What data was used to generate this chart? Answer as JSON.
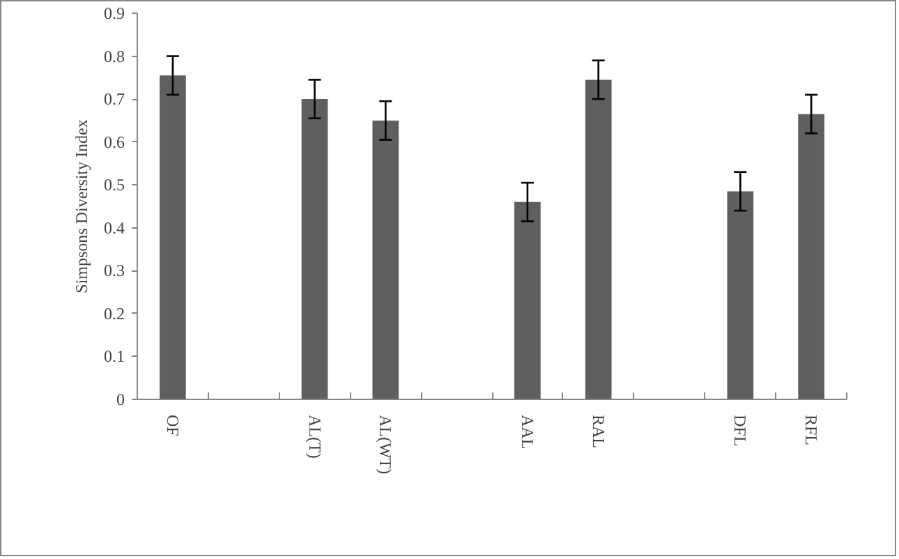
{
  "chart_data": {
    "type": "bar",
    "ylabel": "Simpsons Diversity Index",
    "categories": [
      "OF",
      null,
      "AL(T)",
      "AL(WT)",
      null,
      "AAL",
      "RAL",
      null,
      "DFL",
      "RFL"
    ],
    "values": [
      0.755,
      null,
      0.7,
      0.65,
      null,
      0.46,
      0.745,
      null,
      0.485,
      0.665
    ],
    "errors": [
      0.045,
      null,
      0.045,
      0.045,
      null,
      0.045,
      0.045,
      null,
      0.045,
      0.045
    ],
    "color": "#5f5f5f",
    "ylim": [
      0,
      0.9
    ],
    "yticks": [
      0,
      0.1,
      0.2,
      0.3,
      0.4,
      0.5,
      0.6,
      0.7,
      0.8,
      0.9
    ]
  }
}
